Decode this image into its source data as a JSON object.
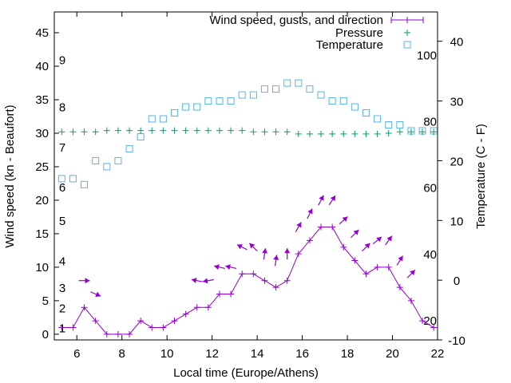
{
  "chart_data": {
    "type": "line",
    "title": "",
    "xlabel": "Local time (Europe/Athens)",
    "ylabel": "Wind speed (kn - Beaufort)",
    "y2label": "Temperature (C - F)",
    "xlim": [
      5,
      22
    ],
    "ylim": [
      -0.85,
      48.1
    ],
    "y2lim": [
      -10,
      44.9
    ],
    "xticks": [
      6,
      8,
      10,
      12,
      14,
      16,
      18,
      20,
      22
    ],
    "yticks": [
      0,
      5,
      10,
      15,
      20,
      25,
      30,
      35,
      40,
      45
    ],
    "y2ticks": [
      -10,
      0,
      10,
      20,
      30,
      40
    ],
    "grid": false,
    "legend_position": "top-right",
    "legend": {
      "wind": "Wind speed, gusts, and direction",
      "pressure": "Pressure",
      "temperature": "Temperature"
    },
    "colors": {
      "wind": "#9400d3",
      "pressure": "#009e73",
      "temperature": "#56b4e9"
    },
    "x": [
      5.33,
      5.83,
      6.33,
      6.83,
      7.33,
      7.83,
      8.33,
      8.83,
      9.33,
      9.83,
      10.33,
      10.83,
      11.33,
      11.83,
      12.33,
      12.83,
      13.33,
      13.83,
      14.33,
      14.83,
      15.33,
      15.83,
      16.33,
      16.83,
      17.33,
      17.83,
      18.33,
      18.83,
      19.33,
      19.83,
      20.33,
      20.83,
      21.33,
      21.83
    ],
    "series": [
      {
        "name": "Wind speed (kn)",
        "axis": "y",
        "values": [
          1,
          1,
          4,
          2,
          0,
          0,
          0,
          2,
          1,
          1,
          2,
          3,
          4,
          4,
          6,
          6,
          9,
          9,
          8,
          7,
          8,
          12,
          14,
          16,
          16,
          13,
          11,
          9,
          10,
          10,
          7,
          5,
          2,
          1
        ]
      },
      {
        "name": "Pressure (plotted on wind axis)",
        "axis": "y",
        "values": [
          30.2,
          30.2,
          30.2,
          30.2,
          30.4,
          30.4,
          30.4,
          30.4,
          30.4,
          30.4,
          30.4,
          30.4,
          30.4,
          30.4,
          30.4,
          30.4,
          30.4,
          30.2,
          30.2,
          30.2,
          30.2,
          29.9,
          29.9,
          29.9,
          29.9,
          29.9,
          29.9,
          29.9,
          29.9,
          30.0,
          30.2,
          30.2,
          30.2,
          30.2
        ]
      },
      {
        "name": "Temperature (C)",
        "axis": "y2",
        "values": [
          17,
          17,
          16,
          20,
          19,
          20,
          22,
          24,
          27,
          27,
          28,
          29,
          29,
          30,
          30,
          30,
          31,
          31,
          32,
          32,
          33,
          33,
          32,
          31,
          30,
          30,
          29,
          28,
          27,
          26,
          26,
          25,
          25,
          25
        ]
      }
    ],
    "gusts": [
      {
        "x": 6.33,
        "gust": 8,
        "arrow_angle_deg": 0
      },
      {
        "x": 6.83,
        "gust": 6,
        "arrow_angle_deg": -23
      },
      {
        "x": 11.33,
        "gust": 8,
        "arrow_angle_deg": 169
      },
      {
        "x": 11.83,
        "gust": 8,
        "arrow_angle_deg": 190
      },
      {
        "x": 12.33,
        "gust": 10,
        "arrow_angle_deg": 167
      },
      {
        "x": 12.83,
        "gust": 10,
        "arrow_angle_deg": 167
      },
      {
        "x": 13.33,
        "gust": 13,
        "arrow_angle_deg": 153
      },
      {
        "x": 13.83,
        "gust": 13,
        "arrow_angle_deg": 135
      },
      {
        "x": 14.33,
        "gust": 12,
        "arrow_angle_deg": 81
      },
      {
        "x": 14.83,
        "gust": 11,
        "arrow_angle_deg": 82
      },
      {
        "x": 15.33,
        "gust": 12,
        "arrow_angle_deg": 90
      },
      {
        "x": 15.83,
        "gust": 16,
        "arrow_angle_deg": 60
      },
      {
        "x": 16.33,
        "gust": 18,
        "arrow_angle_deg": 63
      },
      {
        "x": 16.83,
        "gust": 20,
        "arrow_angle_deg": 63
      },
      {
        "x": 17.33,
        "gust": 20,
        "arrow_angle_deg": 56
      },
      {
        "x": 17.83,
        "gust": 17,
        "arrow_angle_deg": 42
      },
      {
        "x": 18.33,
        "gust": 15,
        "arrow_angle_deg": 45
      },
      {
        "x": 18.83,
        "gust": 13,
        "arrow_angle_deg": 45
      },
      {
        "x": 19.33,
        "gust": 14,
        "arrow_angle_deg": 39
      },
      {
        "x": 19.83,
        "gust": 14,
        "arrow_angle_deg": 54
      },
      {
        "x": 20.33,
        "gust": 11,
        "arrow_angle_deg": 58
      },
      {
        "x": 20.83,
        "gust": 9,
        "arrow_angle_deg": 45
      }
    ],
    "beaufort_labels": [
      {
        "label": "1",
        "knots": 1
      },
      {
        "label": "2",
        "knots": 4
      },
      {
        "label": "3",
        "knots": 7
      },
      {
        "label": "4",
        "knots": 11
      },
      {
        "label": "5",
        "knots": 17
      },
      {
        "label": "6",
        "knots": 22
      },
      {
        "label": "7",
        "knots": 28
      },
      {
        "label": "8",
        "knots": 34
      },
      {
        "label": "9",
        "knots": 41
      }
    ],
    "fahrenheit_labels": [
      {
        "label": "20",
        "f": 20
      },
      {
        "label": "40",
        "f": 40
      },
      {
        "label": "60",
        "f": 60
      },
      {
        "label": "80",
        "f": 80
      },
      {
        "label": "100",
        "f": 100
      }
    ]
  }
}
